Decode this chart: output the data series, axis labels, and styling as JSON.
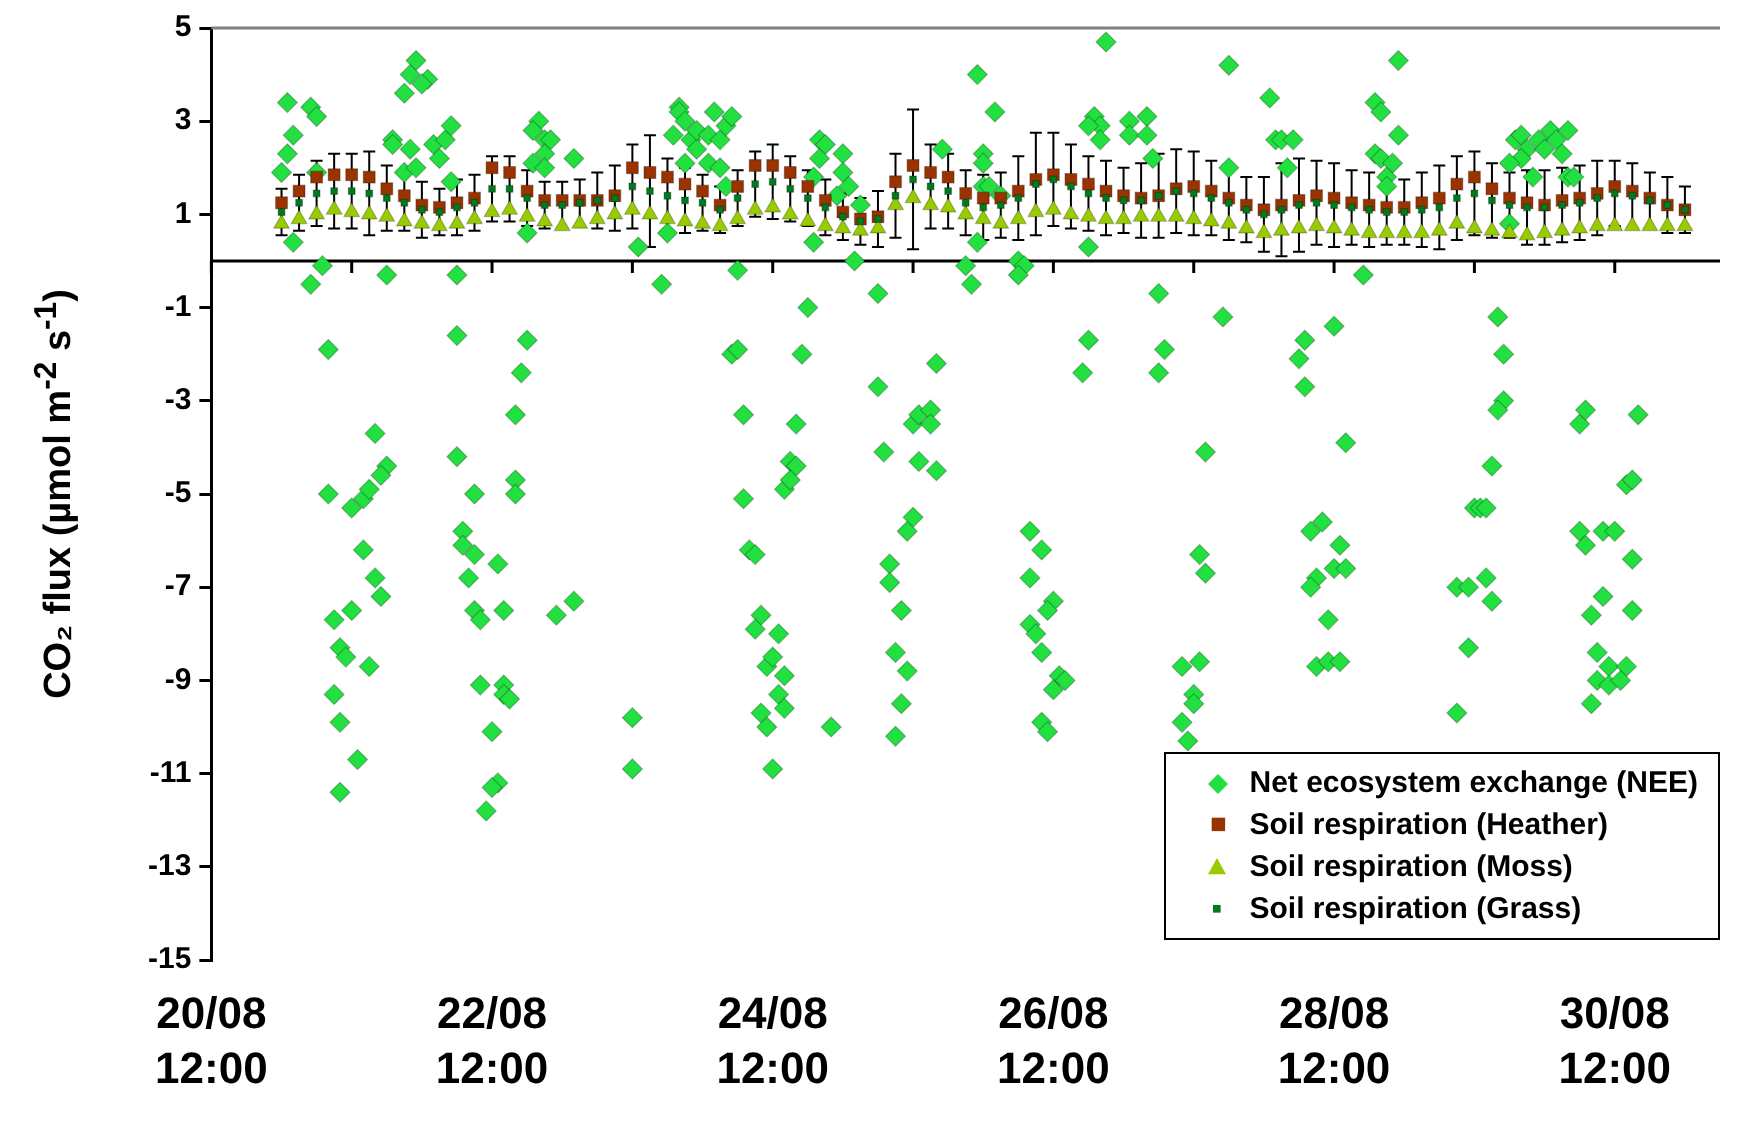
{
  "chart_data": {
    "type": "scatter",
    "ylabel": "CO₂ flux (µmol m$^{-2}$ s$^{-1}$)",
    "legend": "bottom right",
    "xlim": [
      "--08-20T12:00",
      "--08-31T06:00"
    ],
    "xticks": [
      {
        "value": "--08-20T12:00",
        "label": "20/08 12:00"
      },
      {
        "value": "--08-21T12:00",
        "label": null
      },
      {
        "value": "--08-22T12:00",
        "label": "22/08 12:00"
      },
      {
        "value": "--08-23T12:00",
        "label": null
      },
      {
        "value": "--08-24T12:00",
        "label": "24/08 12:00"
      },
      {
        "value": "--08-25T12:00",
        "label": null
      },
      {
        "value": "--08-26T12:00",
        "label": "26/08 12:00"
      },
      {
        "value": "--08-27T12:00",
        "label": null
      },
      {
        "value": "--08-28T12:00",
        "label": "28/08 12:00"
      },
      {
        "value": "--08-29T12:00",
        "label": null
      },
      {
        "value": "--08-30T12:00",
        "label": "30/08 12:00"
      }
    ],
    "ylim": [
      -15,
      5
    ],
    "yticks": [
      -15,
      -13,
      -11,
      -9,
      -7,
      -5,
      -3,
      -1,
      1,
      3,
      5
    ],
    "x": [
      "--08-21T00:00",
      "--08-21T03:00",
      "--08-21T06:00",
      "--08-21T09:00",
      "--08-21T12:00",
      "--08-21T15:00",
      "--08-21T18:00",
      "--08-21T21:00",
      "--08-22T00:00",
      "--08-22T03:00",
      "--08-22T06:00",
      "--08-22T09:00",
      "--08-22T12:00",
      "--08-22T15:00",
      "--08-22T18:00",
      "--08-22T21:00",
      "--08-23T00:00",
      "--08-23T03:00",
      "--08-23T06:00",
      "--08-23T09:00",
      "--08-23T12:00",
      "--08-23T15:00",
      "--08-23T18:00",
      "--08-23T21:00",
      "--08-24T00:00",
      "--08-24T03:00",
      "--08-24T06:00",
      "--08-24T09:00",
      "--08-24T12:00",
      "--08-24T15:00",
      "--08-24T18:00",
      "--08-24T21:00",
      "--08-25T00:00",
      "--08-25T03:00",
      "--08-25T06:00",
      "--08-25T09:00",
      "--08-25T12:00",
      "--08-25T15:00",
      "--08-25T18:00",
      "--08-25T21:00",
      "--08-26T00:00",
      "--08-26T03:00",
      "--08-26T06:00",
      "--08-26T09:00",
      "--08-26T12:00",
      "--08-26T15:00",
      "--08-26T18:00",
      "--08-26T21:00",
      "--08-27T00:00",
      "--08-27T03:00",
      "--08-27T06:00",
      "--08-27T09:00",
      "--08-27T12:00",
      "--08-27T15:00",
      "--08-27T18:00",
      "--08-27T21:00",
      "--08-28T00:00",
      "--08-28T03:00",
      "--08-28T06:00",
      "--08-28T09:00",
      "--08-28T12:00",
      "--08-28T15:00",
      "--08-28T18:00",
      "--08-28T21:00",
      "--08-29T00:00",
      "--08-29T03:00",
      "--08-29T06:00",
      "--08-29T09:00",
      "--08-29T12:00",
      "--08-29T15:00",
      "--08-29T18:00",
      "--08-29T21:00",
      "--08-30T00:00",
      "--08-30T03:00",
      "--08-30T06:00",
      "--08-30T09:00",
      "--08-30T12:00",
      "--08-30T15:00",
      "--08-30T18:00",
      "--08-30T21:00",
      "--08-31T00:00"
    ],
    "series": [
      {
        "name": "Net ecosystem exchange (NEE)",
        "color": "#22e040",
        "marker": "diamond",
        "x": [
          "--08-21T01:00",
          "--08-21T02:00",
          "--08-21T01:00",
          "--08-21T00:00",
          "--08-21T05:00",
          "--08-21T06:00",
          "--08-21T06:00",
          "--08-21T02:00",
          "--08-21T07:00",
          "--08-21T05:00",
          "--08-21T08:00",
          "--08-21T08:00",
          "--08-21T09:00",
          "--08-21T10:00",
          "--08-21T11:00",
          "--08-21T09:00",
          "--08-21T10:00",
          "--08-21T10:00",
          "--08-21T12:00",
          "--08-21T14:00",
          "--08-21T15:00",
          "--08-21T16:00",
          "--08-21T18:00",
          "--08-21T17:00",
          "--08-21T14:00",
          "--08-21T16:00",
          "--08-21T17:00",
          "--08-21T12:00",
          "--08-21T15:00",
          "--08-21T13:00",
          "--08-21T18:00",
          "--08-21T23:00",
          "--08-21T22:00",
          "--08-22T01:00",
          "--08-22T00:00",
          "--08-21T21:00",
          "--08-21T19:00",
          "--08-21T19:00",
          "--08-21T22:00",
          "--08-21T21:00",
          "--08-21T23:00",
          "--08-22T02:00",
          "--08-22T03:00",
          "--08-22T04:00",
          "--08-22T05:00",
          "--08-22T05:00",
          "--08-22T06:00",
          "--08-22T06:00",
          "--08-22T06:00",
          "--08-22T09:00",
          "--08-22T07:00",
          "--08-22T07:00",
          "--08-22T09:00",
          "--08-22T08:00",
          "--08-22T09:00",
          "--08-22T10:00",
          "--08-22T14:00",
          "--08-22T13:00",
          "--08-22T10:00",
          "--08-22T14:00",
          "--08-22T14:00",
          "--08-22T15:00",
          "--08-22T12:00",
          "--08-22T13:00",
          "--08-22T12:00",
          "--08-22T11:00",
          "--08-22T16:00",
          "--08-22T16:00",
          "--08-22T16:00",
          "--08-22T17:00",
          "--08-22T18:00",
          "--08-22T20:00",
          "--08-22T19:00",
          "--08-22T21:00",
          "--08-22T22:00",
          "--08-22T21:00",
          "--08-22T19:00",
          "--08-22T21:00",
          "--08-23T02:00",
          "--08-22T18:00",
          "--08-22T23:00",
          "--08-23T02:00",
          "--08-23T12:00",
          "--08-23T12:00",
          "--08-23T13:00",
          "--08-23T20:00",
          "--08-23T20:00",
          "--08-23T21:00",
          "--08-23T19:00",
          "--08-23T22:00",
          "--08-23T23:00",
          "--08-23T23:00",
          "--08-24T01:00",
          "--08-24T02:00",
          "--08-24T03:00",
          "--08-24T04:00",
          "--08-24T05:00",
          "--08-24T01:00",
          "--08-24T03:00",
          "--08-23T21:00",
          "--08-24T04:00",
          "--08-23T18:00",
          "--08-23T17:00",
          "--08-24T06:00",
          "--08-24T05:00",
          "--08-24T06:00",
          "--08-24T07:00",
          "--08-24T15:00",
          "--08-24T16:00",
          "--08-24T14:00",
          "--08-24T15:00",
          "--08-24T07:00",
          "--08-24T16:00",
          "--08-24T17:00",
          "--08-24T08:00",
          "--08-24T09:00",
          "--08-24T10:00",
          "--08-24T09:00",
          "--08-24T13:00",
          "--08-24T11:00",
          "--08-24T12:00",
          "--08-24T14:00",
          "--08-24T13:00",
          "--08-24T10:00",
          "--08-24T14:00",
          "--08-24T11:00",
          "--08-24T12:00",
          "--08-24T22:00",
          "--08-24T18:00",
          "--08-24T20:00",
          "--08-24T21:00",
          "--08-24T20:00",
          "--08-24T19:00",
          "--08-25T00:00",
          "--08-25T00:00",
          "--08-25T01:00",
          "--08-24T23:00",
          "--08-25T03:00",
          "--08-24T19:00",
          "--08-25T02:00",
          "--08-25T06:00",
          "--08-25T06:00",
          "--08-25T07:00",
          "--08-25T12:00",
          "--08-25T13:00",
          "--08-25T15:00",
          "--08-25T15:00",
          "--08-25T16:00",
          "--08-25T13:00",
          "--08-25T16:00",
          "--08-25T12:00",
          "--08-25T11:00",
          "--08-25T08:00",
          "--08-25T08:00",
          "--08-25T10:00",
          "--08-25T09:00",
          "--08-25T11:00",
          "--08-25T10:00",
          "--08-25T09:00",
          "--08-25T17:00",
          "--08-25T23:00",
          "--08-26T02:00",
          "--08-26T00:00",
          "--08-26T00:00",
          "--08-26T00:00",
          "--08-26T01:00",
          "--08-26T03:00",
          "--08-25T23:00",
          "--08-25T21:00",
          "--08-25T22:00",
          "--08-26T06:00",
          "--08-26T07:00",
          "--08-26T06:00",
          "--08-26T08:00",
          "--08-26T10:00",
          "--08-26T08:00",
          "--08-26T12:00",
          "--08-26T11:00",
          "--08-26T08:00",
          "--08-26T09:00",
          "--08-26T10:00",
          "--08-26T13:00",
          "--08-26T14:00",
          "--08-26T12:00",
          "--08-26T10:00",
          "--08-26T11:00",
          "--08-26T18:00",
          "--08-26T17:00",
          "--08-26T21:00",
          "--08-26T19:00",
          "--08-26T20:00",
          "--08-26T18:00",
          "--08-26T20:00",
          "--08-27T01:00",
          "--08-27T04:00",
          "--08-27T01:00",
          "--08-27T04:00",
          "--08-27T05:00",
          "--08-26T18:00",
          "--08-27T06:00",
          "--08-27T07:00",
          "--08-27T06:00",
          "--08-27T14:00",
          "--08-27T13:00",
          "--08-27T14:00",
          "--08-27T10:00",
          "--08-27T13:00",
          "--08-27T12:00",
          "--08-27T12:00",
          "--08-27T10:00",
          "--08-27T11:00",
          "--08-27T17:00",
          "--08-27T18:00",
          "--08-28T01:00",
          "--08-28T02:00",
          "--08-28T03:00",
          "--08-28T05:00",
          "--08-27T18:00",
          "--08-28T04:00",
          "--08-28T07:00",
          "--08-28T06:00",
          "--08-28T07:00",
          "--08-28T12:00",
          "--08-28T14:00",
          "--08-28T08:00",
          "--08-28T10:00",
          "--08-28T13:00",
          "--08-28T12:00",
          "--08-28T14:00",
          "--08-28T09:00",
          "--08-28T08:00",
          "--08-28T11:00",
          "--08-28T09:00",
          "--08-28T11:00",
          "--08-28T13:00",
          "--08-28T17:00",
          "--08-28T23:00",
          "--08-28T19:00",
          "--08-28T20:00",
          "--08-28T23:00",
          "--08-28T19:00",
          "--08-28T20:00",
          "--08-28T22:00",
          "--08-28T21:00",
          "--08-28T21:00",
          "--08-29T17:00",
          "--08-29T17:00",
          "--08-29T16:00",
          "--08-29T15:00",
          "--08-29T12:00",
          "--08-29T13:00",
          "--08-29T14:00",
          "--08-29T09:00",
          "--08-29T11:00",
          "--08-29T14:00",
          "--08-29T15:00",
          "--08-29T11:00",
          "--08-29T09:00",
          "--08-29T16:00",
          "--08-29T19:00",
          "--08-29T20:00",
          "--08-29T21:00",
          "--08-29T23:00",
          "--08-30T00:00",
          "--08-30T01:00",
          "--08-30T02:00",
          "--08-30T03:00",
          "--08-30T04:00",
          "--08-29T20:00",
          "--08-29T18:00",
          "--08-29T22:00",
          "--08-30T04:00",
          "--08-30T05:00",
          "--08-29T18:00",
          "--08-30T06:00",
          "--08-30T07:00",
          "--08-30T16:00",
          "--08-30T14:00",
          "--08-30T15:00",
          "--08-30T06:00",
          "--08-30T10:00",
          "--08-30T12:00",
          "--08-30T07:00",
          "--08-30T15:00",
          "--08-30T10:00",
          "--08-30T08:00",
          "--08-30T15:00",
          "--08-30T09:00",
          "--08-30T11:00",
          "--08-30T14:00",
          "--08-30T09:00",
          "--08-30T11:00",
          "--08-30T13:00",
          "--08-30T08:00"
        ],
        "values": [
          3.4,
          2.7,
          2.3,
          1.9,
          3.3,
          3.1,
          1.9,
          0.4,
          -0.1,
          -0.5,
          -1.9,
          -5.0,
          -7.7,
          -8.3,
          -8.5,
          -9.3,
          -9.9,
          -11.4,
          -5.3,
          -5.1,
          -4.9,
          -3.7,
          -4.4,
          -4.6,
          -6.2,
          -6.8,
          -7.2,
          -7.5,
          -8.7,
          -10.7,
          -0.3,
          4.3,
          4.0,
          3.9,
          3.8,
          3.6,
          2.6,
          2.5,
          2.4,
          1.9,
          2.0,
          2.5,
          2.2,
          2.6,
          2.9,
          1.7,
          -0.3,
          -1.6,
          -4.2,
          -5.0,
          -5.8,
          -6.1,
          -6.3,
          -6.8,
          -7.5,
          -7.7,
          -7.5,
          -6.5,
          -9.1,
          -9.1,
          -9.3,
          -9.4,
          -10.1,
          -11.2,
          -11.3,
          -11.8,
          -4.7,
          -5.0,
          -3.3,
          -2.4,
          -1.7,
          3.0,
          2.8,
          2.6,
          2.6,
          2.3,
          2.1,
          2.0,
          2.2,
          0.6,
          -7.6,
          -7.3,
          -9.8,
          -10.9,
          0.3,
          3.3,
          3.2,
          3.0,
          2.7,
          2.6,
          2.4,
          2.8,
          2.7,
          3.2,
          2.6,
          2.9,
          3.1,
          2.1,
          2.0,
          2.1,
          1.6,
          0.6,
          -0.5,
          -0.2,
          -2.0,
          -1.9,
          -3.3,
          -4.3,
          -4.4,
          -4.9,
          -4.7,
          -5.1,
          -3.5,
          -2.0,
          -6.2,
          -6.3,
          -7.6,
          -7.9,
          -8.0,
          -8.7,
          -8.5,
          -8.9,
          -9.3,
          -9.7,
          -9.6,
          -10.0,
          -10.9,
          -10.0,
          -1.0,
          2.6,
          2.5,
          2.2,
          1.8,
          2.3,
          1.9,
          1.6,
          1.4,
          1.2,
          0.4,
          0.0,
          -0.7,
          -2.7,
          -4.1,
          -3.5,
          -3.3,
          -3.2,
          -3.5,
          -2.2,
          -4.3,
          -4.5,
          -5.5,
          -5.8,
          -6.5,
          -6.9,
          -7.5,
          -8.4,
          -8.8,
          -9.5,
          -10.2,
          2.4,
          4.0,
          3.2,
          2.3,
          2.1,
          1.6,
          1.6,
          1.4,
          0.4,
          -0.1,
          -0.5,
          0.0,
          -0.1,
          -0.3,
          -5.8,
          -6.2,
          -6.8,
          -7.3,
          -7.5,
          -7.8,
          -8.0,
          -8.4,
          -8.9,
          -9.0,
          -9.2,
          -9.9,
          -10.1,
          -1.7,
          -2.4,
          4.7,
          3.1,
          2.9,
          2.9,
          2.6,
          3.0,
          3.1,
          2.7,
          2.7,
          2.2,
          0.3,
          -0.7,
          -1.9,
          -2.4,
          -4.1,
          -6.3,
          -6.7,
          -8.7,
          -8.6,
          -9.3,
          -9.5,
          -9.9,
          -10.3,
          -1.2,
          4.2,
          3.5,
          2.6,
          2.6,
          2.6,
          2.0,
          2.0,
          -1.7,
          -2.1,
          -2.7,
          -1.4,
          -3.9,
          -5.8,
          -5.6,
          -6.1,
          -6.6,
          -6.6,
          -6.8,
          -7.0,
          -7.7,
          -8.7,
          -8.6,
          -8.6,
          -0.3,
          4.3,
          3.4,
          3.2,
          2.7,
          2.3,
          2.2,
          2.1,
          1.8,
          1.6,
          -2.0,
          -3.0,
          -3.2,
          -4.4,
          -5.3,
          -5.3,
          -5.3,
          -7.0,
          -7.0,
          -6.8,
          -7.3,
          -8.3,
          -9.7,
          -1.2,
          2.6,
          2.7,
          2.4,
          2.6,
          2.4,
          2.8,
          2.6,
          2.3,
          2.8,
          2.2,
          2.1,
          1.8,
          1.8,
          1.8,
          0.8,
          -3.5,
          -3.2,
          -3.3,
          -4.8,
          -4.7,
          -5.8,
          -5.8,
          -5.8,
          -6.1,
          -6.4,
          -7.2,
          -7.6,
          -7.5,
          -8.4,
          -8.7,
          -8.7,
          -9.0,
          -9.1,
          -9.0,
          -9.5
        ]
      },
      {
        "name": "Soil respiration (Heather)",
        "color": "#993300",
        "marker": "square",
        "values": [
          1.25,
          1.5,
          1.8,
          1.85,
          1.85,
          1.8,
          1.55,
          1.4,
          1.2,
          1.15,
          1.25,
          1.35,
          2.0,
          1.9,
          1.5,
          1.3,
          1.3,
          1.3,
          1.3,
          1.4,
          2.0,
          1.9,
          1.8,
          1.65,
          1.5,
          1.2,
          1.6,
          2.05,
          2.05,
          1.9,
          1.6,
          1.3,
          1.05,
          0.9,
          0.95,
          1.7,
          2.05,
          1.9,
          1.8,
          1.45,
          1.35,
          1.35,
          1.5,
          1.75,
          1.85,
          1.75,
          1.65,
          1.5,
          1.4,
          1.35,
          1.4,
          1.55,
          1.6,
          1.5,
          1.35,
          1.2,
          1.1,
          1.2,
          1.3,
          1.4,
          1.35,
          1.25,
          1.2,
          1.15,
          1.15,
          1.25,
          1.35,
          1.65,
          1.8,
          1.55,
          1.35,
          1.25,
          1.2,
          1.3,
          1.35,
          1.45,
          1.6,
          1.5,
          1.35,
          1.2,
          1.1
        ]
      },
      {
        "name": "Soil respiration (Moss)",
        "color": "#99cc00",
        "marker": "triangle",
        "values": [
          0.8,
          0.9,
          1.0,
          1.1,
          1.05,
          1.0,
          0.95,
          0.85,
          0.8,
          0.75,
          0.8,
          0.9,
          1.05,
          1.1,
          0.95,
          0.85,
          0.75,
          0.8,
          0.9,
          1.0,
          1.1,
          1.0,
          0.9,
          0.85,
          0.8,
          0.75,
          0.9,
          1.1,
          1.15,
          1.0,
          0.85,
          0.75,
          0.7,
          0.65,
          0.7,
          1.2,
          1.35,
          1.2,
          1.15,
          1.0,
          0.9,
          0.8,
          0.9,
          1.05,
          1.1,
          1.0,
          0.95,
          0.9,
          0.9,
          0.95,
          0.95,
          0.95,
          0.9,
          0.85,
          0.8,
          0.7,
          0.6,
          0.65,
          0.7,
          0.75,
          0.7,
          0.65,
          0.6,
          0.6,
          0.6,
          0.6,
          0.65,
          0.8,
          0.7,
          0.65,
          0.6,
          0.55,
          0.6,
          0.65,
          0.7,
          0.75,
          0.75,
          0.75,
          0.75,
          0.75,
          0.75
        ]
      },
      {
        "name": "Soil respiration (Grass)",
        "color": "#007a1f",
        "marker": "square",
        "values": [
          1.05,
          1.25,
          1.45,
          1.5,
          1.5,
          1.45,
          1.35,
          1.25,
          1.1,
          1.05,
          1.15,
          1.25,
          1.55,
          1.55,
          1.35,
          1.2,
          1.2,
          1.25,
          1.3,
          1.35,
          1.6,
          1.5,
          1.4,
          1.3,
          1.25,
          1.1,
          1.35,
          1.65,
          1.7,
          1.55,
          1.35,
          1.15,
          0.95,
          0.85,
          0.9,
          1.4,
          1.75,
          1.6,
          1.5,
          1.25,
          1.15,
          1.2,
          1.35,
          1.65,
          1.75,
          1.6,
          1.45,
          1.35,
          1.3,
          1.3,
          1.4,
          1.5,
          1.45,
          1.35,
          1.25,
          1.1,
          1.0,
          1.1,
          1.2,
          1.25,
          1.2,
          1.15,
          1.1,
          1.05,
          1.05,
          1.1,
          1.15,
          1.35,
          1.45,
          1.3,
          1.2,
          1.15,
          1.15,
          1.2,
          1.25,
          1.35,
          1.45,
          1.4,
          1.3,
          1.2,
          1.1
        ],
        "errors": [
          0.5,
          0.6,
          0.7,
          0.8,
          0.8,
          0.9,
          0.7,
          0.6,
          0.6,
          0.5,
          0.6,
          0.6,
          0.7,
          0.7,
          0.6,
          0.5,
          0.5,
          0.5,
          0.6,
          0.7,
          0.9,
          1.2,
          0.8,
          0.7,
          0.6,
          0.5,
          0.6,
          0.7,
          0.8,
          0.7,
          0.6,
          0.6,
          0.5,
          0.5,
          0.6,
          0.9,
          1.5,
          0.9,
          0.8,
          0.7,
          0.7,
          0.7,
          0.9,
          1.1,
          1.0,
          0.9,
          0.8,
          0.8,
          0.7,
          0.8,
          0.9,
          0.9,
          0.9,
          0.8,
          0.8,
          0.7,
          0.8,
          1.0,
          1.0,
          0.9,
          0.9,
          0.8,
          0.8,
          0.7,
          0.7,
          0.8,
          0.9,
          0.9,
          0.9,
          0.8,
          0.7,
          0.8,
          0.8,
          0.8,
          0.8,
          0.8,
          0.7,
          0.7,
          0.6,
          0.6,
          0.5
        ]
      }
    ]
  }
}
